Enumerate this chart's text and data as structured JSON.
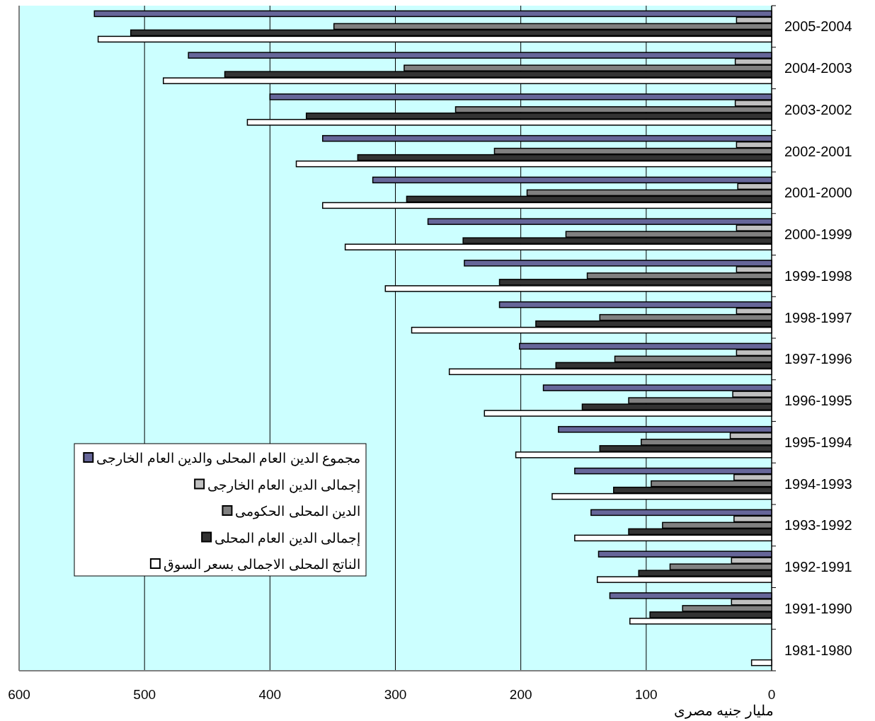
{
  "chart_data": {
    "type": "bar",
    "orientation": "horizontal",
    "xlabel": "مليار جنيه مصرى",
    "categories": [
      "2005-2004",
      "2004-2003",
      "2003-2002",
      "2002-2001",
      "2001-2000",
      "2000-1999",
      "1999-1998",
      "1998-1997",
      "1997-1996",
      "1996-1995",
      "1995-1994",
      "1994-1993",
      "1993-1992",
      "1992-1991",
      "1991-1990",
      "1981-1980"
    ],
    "series": [
      {
        "name": "مجموع الدين العام المحلى والدين العام الخارجى",
        "color": "#666699",
        "values": [
          540,
          465,
          400,
          358,
          318,
          274,
          245,
          217,
          201,
          182,
          170,
          157,
          144,
          138,
          129,
          null
        ]
      },
      {
        "name": "إجمالى الدين العام الخارجى",
        "color": "#c0c0c0",
        "values": [
          28,
          29,
          29,
          28,
          27,
          28,
          28,
          28,
          28,
          31,
          33,
          30,
          30,
          32,
          32,
          null
        ]
      },
      {
        "name": "الدين المحلى الحكومى",
        "color": "#808080",
        "values": [
          349,
          293,
          252,
          221,
          195,
          164,
          147,
          137,
          125,
          114,
          104,
          96,
          87,
          81,
          71,
          null
        ]
      },
      {
        "name": "إجمالى الدين العام المحلى",
        "color": "#333333",
        "values": [
          511,
          436,
          371,
          330,
          291,
          246,
          217,
          188,
          172,
          151,
          137,
          126,
          114,
          106,
          97,
          null
        ]
      },
      {
        "name": "الناتج المحلى الاجمالى بسعر السوق",
        "color": "#ffffff",
        "values": [
          537,
          485,
          418,
          379,
          358,
          340,
          308,
          287,
          257,
          229,
          204,
          175,
          157,
          139,
          113,
          16
        ]
      }
    ],
    "xlim": [
      600,
      0
    ],
    "xticks": [
      0,
      100,
      200,
      300,
      400,
      500,
      600
    ],
    "grid": "x",
    "legend": "bottom left"
  }
}
